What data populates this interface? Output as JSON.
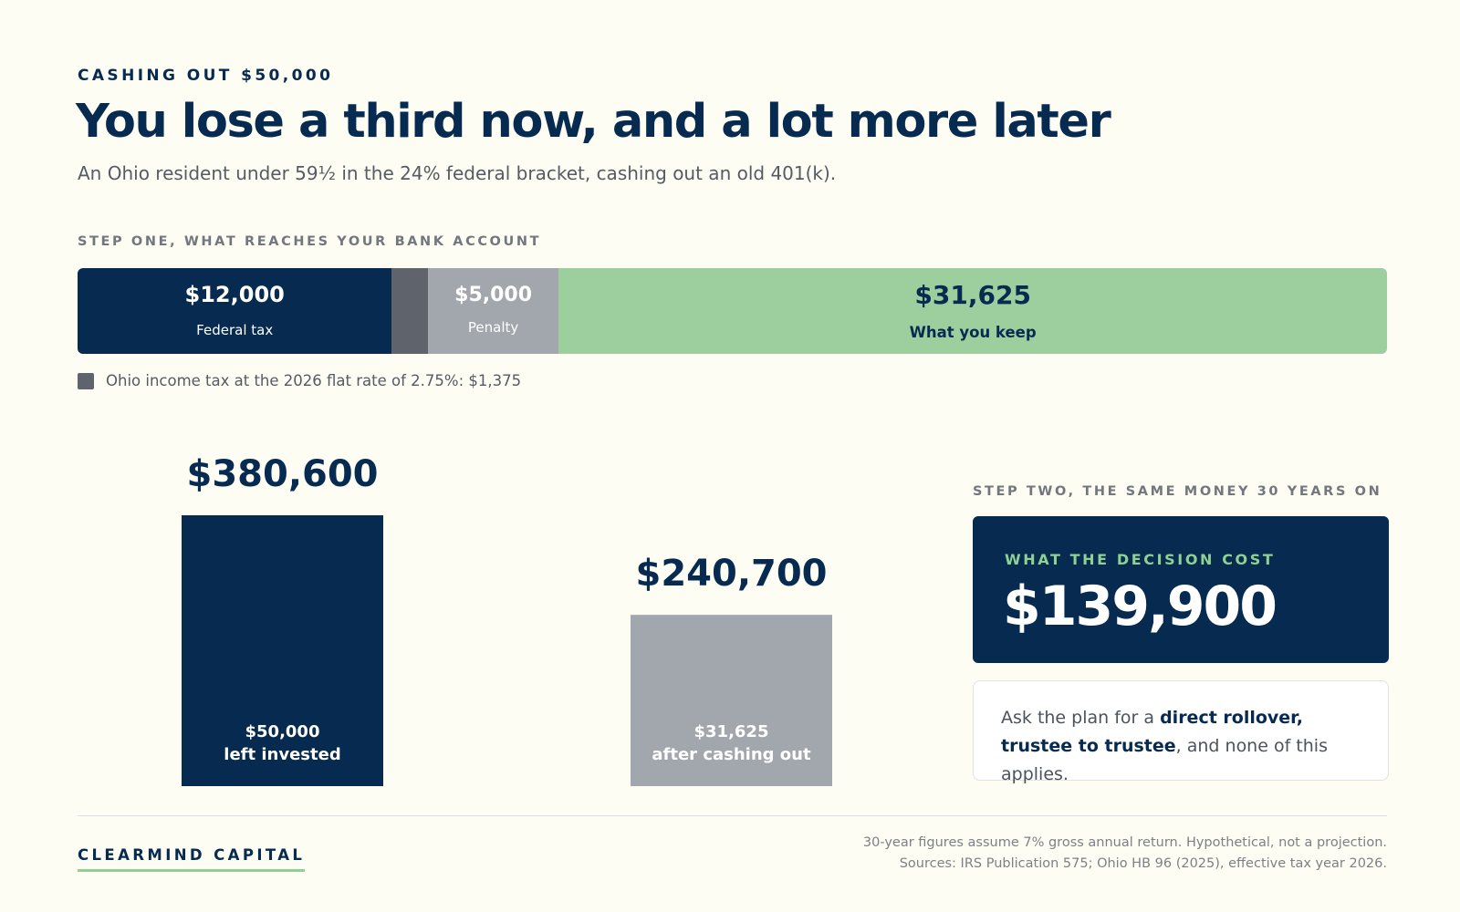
{
  "eyebrow": "CASHING OUT $50,000",
  "title": "You lose a third now, and a lot more later",
  "subtitle": "An Ohio resident under 59½ in the 24% federal bracket, cashing out an old 401(k).",
  "step_one_label": "STEP ONE, WHAT REACHES YOUR BANK ACCOUNT",
  "step_two_label": "STEP TWO, THE SAME MONEY 30 YEARS ON",
  "colors": {
    "navy": "#062a50",
    "state_tax_gray": "#5f636b",
    "penalty_gray": "#a2a7ae",
    "keep_green": "#9dce9e",
    "accent_green": "#8fd192",
    "background": "#fdfdf3"
  },
  "chart_data": [
    {
      "type": "bar",
      "orientation": "horizontal-stacked",
      "total": 50000,
      "segments": [
        {
          "value_label": "$12,000",
          "label": "Federal tax",
          "value": 12000,
          "color": "#062a50"
        },
        {
          "value_label": "",
          "label": "",
          "value": 1375,
          "color": "#5f636b"
        },
        {
          "value_label": "$5,000",
          "label": "Penalty",
          "value": 5000,
          "color": "#a2a7ae"
        },
        {
          "value_label": "$31,625",
          "label": "What you keep",
          "value": 31625,
          "color": "#9dce9e"
        }
      ],
      "legend": {
        "label": "Ohio income tax at the 2026 flat rate of 2.75%: $1,375",
        "color": "#5f636b"
      }
    },
    {
      "type": "bar",
      "ylim": [
        0,
        380600
      ],
      "bars": [
        {
          "value": 380600,
          "value_label": "$380,600",
          "label_line1": "$50,000",
          "label_line2": "left invested",
          "color": "#062a50"
        },
        {
          "value": 240700,
          "value_label": "$240,700",
          "label_line1": "$31,625",
          "label_line2": "after cashing out",
          "color": "#a2a7ae"
        }
      ]
    }
  ],
  "callout": {
    "kicker": "WHAT THE DECISION COST",
    "amount": "$139,900"
  },
  "tip": {
    "before": "Ask the plan for a ",
    "bold": "direct rollover, trustee to trustee",
    "after": ", and none of this applies."
  },
  "footer": {
    "brand": "CLEARMIND CAPITAL",
    "note1": "30-year figures assume 7% gross annual return. Hypothetical, not a projection.",
    "note2": "Sources: IRS Publication 575; Ohio HB 96 (2025), effective tax year 2026."
  }
}
